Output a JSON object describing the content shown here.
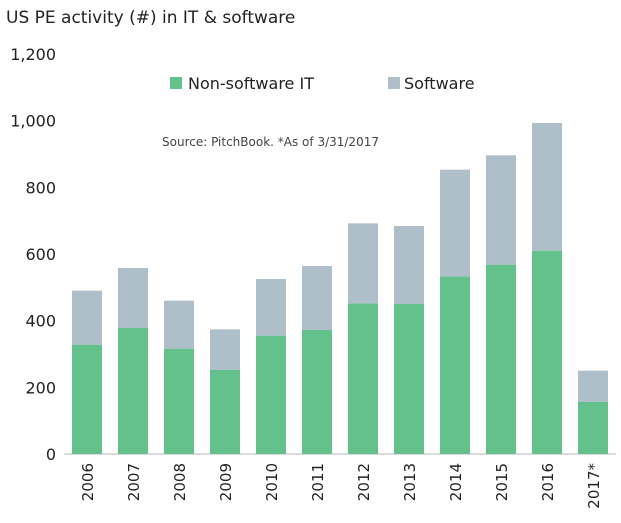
{
  "chart_data": {
    "type": "bar",
    "stacked": true,
    "title": "US PE activity (#) in IT & software",
    "source_note": "Source: PitchBook. *As of 3/31/2017",
    "categories": [
      "2006",
      "2007",
      "2008",
      "2009",
      "2010",
      "2011",
      "2012",
      "2013",
      "2014",
      "2015",
      "2016",
      "2017*"
    ],
    "series": [
      {
        "name": "Non-software IT",
        "color": "#65c18c",
        "values": [
          328,
          378,
          316,
          252,
          355,
          372,
          452,
          450,
          533,
          568,
          610,
          156
        ]
      },
      {
        "name": "Software",
        "color": "#aebfca",
        "values": [
          162,
          180,
          144,
          122,
          170,
          192,
          240,
          234,
          320,
          328,
          383,
          94
        ]
      }
    ],
    "ylim": [
      0,
      1200
    ],
    "yticks": [
      {
        "value": 0,
        "label": "0"
      },
      {
        "value": 200,
        "label": "200"
      },
      {
        "value": 400,
        "label": "400"
      },
      {
        "value": 600,
        "label": "600"
      },
      {
        "value": 800,
        "label": "800"
      },
      {
        "value": 1000,
        "label": "1,000"
      },
      {
        "value": 1200,
        "label": "1,200"
      }
    ],
    "grid": false,
    "legend_position": "top-center"
  }
}
